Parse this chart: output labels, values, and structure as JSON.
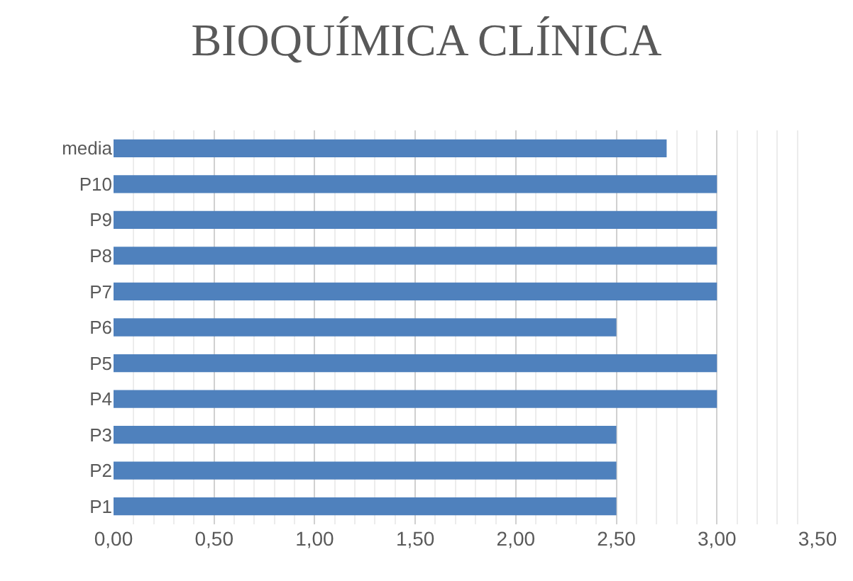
{
  "chart_data": {
    "type": "bar",
    "orientation": "horizontal",
    "title": "BIOQUÍMICA CLÍNICA",
    "categories": [
      "media",
      "P10",
      "P9",
      "P8",
      "P7",
      "P6",
      "P5",
      "P4",
      "P3",
      "P2",
      "P1"
    ],
    "values": [
      2.75,
      3,
      3,
      3,
      3,
      2.5,
      3,
      3,
      2.5,
      2.5,
      2.5
    ],
    "color": "#4f81bd",
    "xlim": [
      0,
      3.5
    ],
    "xticks": [
      {
        "value": 0,
        "label": "0,00"
      },
      {
        "value": 0.5,
        "label": "0,50"
      },
      {
        "value": 1,
        "label": "1,00"
      },
      {
        "value": 1.5,
        "label": "1,50"
      },
      {
        "value": 2,
        "label": "2,00"
      },
      {
        "value": 2.5,
        "label": "2,50"
      },
      {
        "value": 3,
        "label": "3,00"
      },
      {
        "value": 3.5,
        "label": "3,50"
      }
    ],
    "grid": true
  }
}
